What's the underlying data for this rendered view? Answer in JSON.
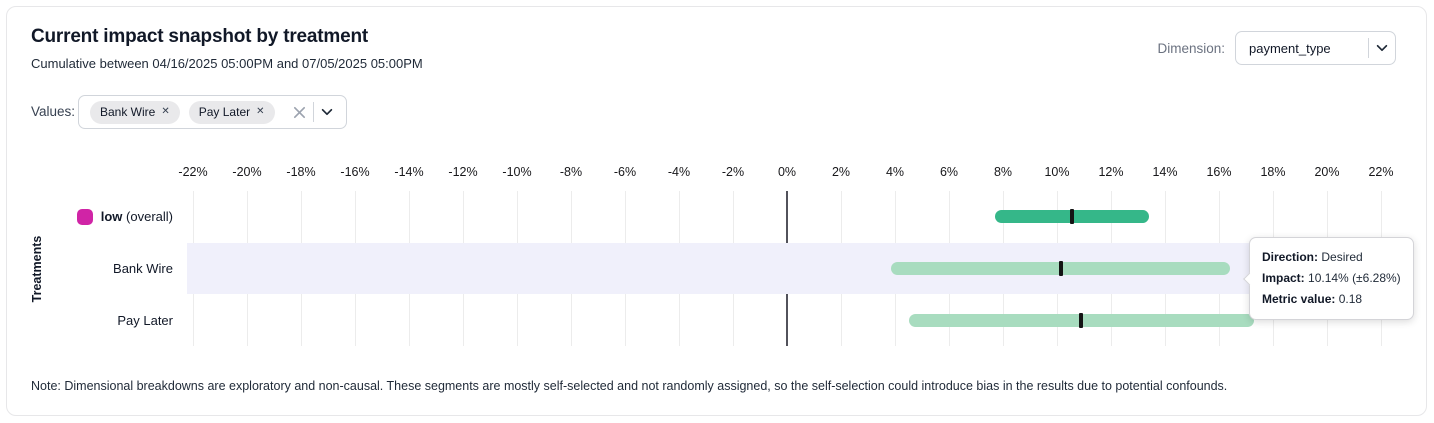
{
  "header": {
    "title": "Current impact snapshot by treatment",
    "subtitle": "Cumulative between 04/16/2025 05:00PM and 07/05/2025 05:00PM",
    "dimension_label": "Dimension:",
    "dimension_value": "payment_type"
  },
  "filters": {
    "values_label": "Values:",
    "chips": [
      {
        "label": "Bank Wire"
      },
      {
        "label": "Pay Later"
      }
    ]
  },
  "chart_data": {
    "type": "bar",
    "subtype": "horizontal-interval-with-center-marker",
    "title": "Current impact snapshot by treatment",
    "xlabel": "",
    "ylabel": "Treatments",
    "unit": "%",
    "axis": {
      "min": -22,
      "max": 22,
      "step": 2,
      "tick_values": [
        -22,
        -20,
        -18,
        -16,
        -14,
        -12,
        -10,
        -8,
        -6,
        -4,
        -2,
        0,
        2,
        4,
        6,
        8,
        10,
        12,
        14,
        16,
        18,
        20,
        22
      ],
      "tick_labels": [
        "-22%",
        "-20%",
        "-18%",
        "-16%",
        "-14%",
        "-12%",
        "-10%",
        "-8%",
        "-6%",
        "-4%",
        "-2%",
        "0%",
        "2%",
        "4%",
        "6%",
        "8%",
        "10%",
        "12%",
        "14%",
        "16%",
        "18%",
        "20%",
        "22%"
      ],
      "grid": true,
      "zero_line": true
    },
    "rows": [
      {
        "label": "low",
        "suffix": "(overall)",
        "emphasis": true,
        "swatch_color": "#d024a6",
        "bar_color": "#35b789",
        "low": 7.7,
        "center": 10.55,
        "high": 13.4,
        "highlighted": false
      },
      {
        "label": "Bank Wire",
        "suffix": "",
        "emphasis": false,
        "swatch_color": null,
        "bar_color": "#a8dcbf",
        "low": 3.86,
        "center": 10.14,
        "high": 16.42,
        "highlighted": true
      },
      {
        "label": "Pay Later",
        "suffix": "",
        "emphasis": false,
        "swatch_color": null,
        "bar_color": "#a8dcbf",
        "low": 4.5,
        "center": 10.9,
        "high": 17.3,
        "highlighted": false
      }
    ],
    "highlight_band_color": "#f0f0fb",
    "marker_color": "#141414"
  },
  "tooltip": {
    "direction_label": "Direction:",
    "direction_value": "Desired",
    "impact_label": "Impact:",
    "impact_value": "10.14% (±6.28%)",
    "metric_label": "Metric value:",
    "metric_value": "0.18"
  },
  "note": "Note: Dimensional breakdowns are exploratory and non-causal. These segments are mostly self-selected and not randomly assigned, so the self-selection could introduce bias in the results due to potential confounds."
}
